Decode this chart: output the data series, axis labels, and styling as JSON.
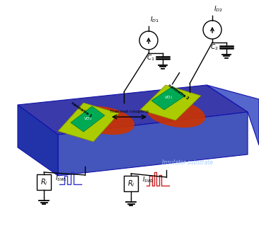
{
  "bg_color": "#ffffff",
  "sub_top_color": "#3a3aaa",
  "sub_right_color": "#5566cc",
  "sub_front_color": "#4455bb",
  "sub_left_color": "#2233aa",
  "sub_edge_color": "#1111aa",
  "stripe_color": "#aacc00",
  "stripe_edge_color": "#888800",
  "vo2_color": "#00aa55",
  "vo2_edge_color": "#007733",
  "hotspot_color": "#cc3300",
  "insulator_text": "Insulator substrate",
  "insulator_color": "#aaccff",
  "thermal_text": "Thermal coupling",
  "nanowire1_text": "nanowire 1",
  "nanowire2_text": "nanowire 2",
  "blue_pulse_color": "#3333cc",
  "red_pulse_color": "#cc2222",
  "line_color": "#000000",
  "label_ID1": "$I_{D1}$",
  "label_ID2": "$I_{D2}$",
  "label_C1": "$C_1$",
  "label_C2": "$C_2$",
  "label_ISW1": "$I_{SW1}$",
  "label_ISW2": "$I_{SW2}$",
  "label_Ri": "$R_i$",
  "label_VO2": "$VO_2$"
}
